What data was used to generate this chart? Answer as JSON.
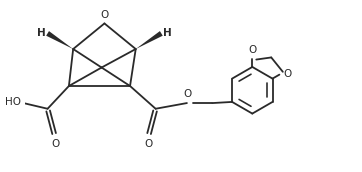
{
  "background": "#ffffff",
  "line_color": "#2a2a2a",
  "line_width": 1.3,
  "figsize": [
    3.62,
    1.72
  ],
  "dpi": 100,
  "xlim": [
    -0.5,
    10.5
  ],
  "ylim": [
    0.0,
    6.0
  ]
}
